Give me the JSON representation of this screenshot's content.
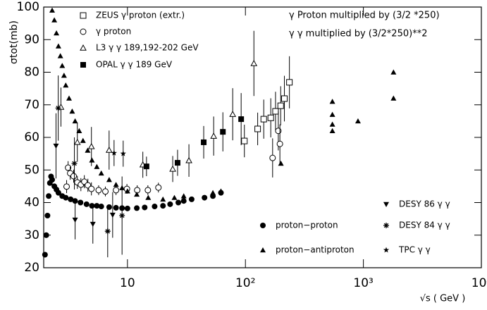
{
  "chart_data": {
    "type": "scatter",
    "y_label": "σtot(mb)",
    "x_label": "√s ( GeV )",
    "annotations": [
      "γ Proton multiplied by (3/2 *250)",
      "γ γ multiplied by (3/2*250)**2"
    ],
    "x_scale": "log",
    "xlim": [
      1.95,
      10000
    ],
    "ylim": [
      20,
      100
    ],
    "xticks": [
      {
        "value": 10,
        "label": "10"
      },
      {
        "value": 100,
        "label": "10²"
      },
      {
        "value": 1000,
        "label": "10³"
      },
      {
        "value": 10000,
        "label": "10⁴"
      }
    ],
    "yticks": [
      20,
      30,
      40,
      50,
      60,
      70,
      80,
      90,
      100
    ],
    "series": [
      {
        "name": "ZEUS γ proton (extr.)",
        "marker": "open-square",
        "legend": "upper-left",
        "x": [
          98,
          127,
          143,
          164,
          180,
          199,
          214,
          236
        ],
        "values": [
          58.9,
          62.6,
          65.6,
          66,
          68,
          69.7,
          71.9,
          76.9
        ],
        "errors": [
          5,
          5,
          6,
          6,
          6,
          6,
          7,
          8
        ]
      },
      {
        "name": "γ proton",
        "marker": "open-circle",
        "legend": "upper-left",
        "x": [
          3.05,
          3.14,
          3.27,
          3.5,
          3.76,
          4.03,
          4.31,
          4.62,
          4.95,
          5.7,
          6.5,
          8.0,
          9.9,
          12.1,
          14.9,
          18.3,
          170,
          190,
          196
        ],
        "values": [
          44.9,
          50.7,
          49.0,
          48.1,
          46.2,
          45.5,
          46.4,
          45.3,
          44.2,
          43.8,
          43.4,
          43.8,
          44.2,
          43.8,
          43.8,
          44.6,
          53.7,
          62,
          58
        ],
        "errors": [
          2,
          2,
          2,
          2,
          2,
          2,
          2,
          2,
          2,
          1.5,
          1.5,
          1.5,
          1.5,
          1.5,
          1.5,
          1.5,
          6,
          6,
          6
        ]
      },
      {
        "name": "L3 γ γ 189,192-202 GeV",
        "marker": "open-triangle",
        "legend": "upper-left",
        "x": [
          2.73,
          3.76,
          4.95,
          6.99,
          13.5,
          24.2,
          33.2,
          53.8,
          78,
          118
        ],
        "values": [
          69.3,
          58.5,
          57.2,
          56.1,
          51.6,
          50.3,
          52.9,
          60.4,
          67.1,
          82.7
        ],
        "errors": [
          6,
          6,
          6,
          6,
          4,
          4,
          5,
          6,
          8,
          10
        ]
      },
      {
        "name": "OPAL γ γ 189 GeV",
        "marker": "filled-square",
        "legend": "upper-left",
        "x": [
          14.5,
          26.6,
          44.3,
          64.4,
          92
        ],
        "values": [
          51.1,
          52.2,
          58.5,
          61.7,
          65.6
        ],
        "errors": [
          3,
          4,
          5,
          6,
          8
        ]
      },
      {
        "name": "proton−proton",
        "marker": "filled-circle",
        "legend": "lower-right",
        "x": [
          2.0,
          2.05,
          2.1,
          2.15,
          2.2,
          2.25,
          2.3,
          2.4,
          2.5,
          2.6,
          2.8,
          3.0,
          3.3,
          3.6,
          4.0,
          4.5,
          5,
          5.5,
          6,
          7,
          8,
          9,
          10,
          12,
          14,
          17,
          20,
          23,
          27,
          30,
          35,
          45,
          53,
          62
        ],
        "values": [
          24,
          30,
          36,
          42,
          46,
          48,
          47,
          45,
          44,
          43,
          42,
          41.5,
          41,
          40.5,
          40,
          39.5,
          39,
          39,
          38.8,
          38.6,
          38.4,
          38.3,
          38.2,
          38.3,
          38.5,
          38.8,
          39,
          39.5,
          40,
          40.5,
          41,
          41.5,
          42,
          43
        ]
      },
      {
        "name": "proton−antiproton",
        "marker": "filled-triangle",
        "legend": "lower-right",
        "x": [
          2.3,
          2.4,
          2.5,
          2.6,
          2.7,
          2.8,
          2.9,
          3.0,
          3.2,
          3.4,
          3.6,
          3.9,
          4.2,
          4.6,
          5,
          5.5,
          6,
          7,
          8,
          9,
          10,
          12,
          15,
          20,
          25,
          30,
          53,
          62,
          200,
          546,
          546,
          546,
          546,
          900,
          1800,
          1800
        ],
        "values": [
          99,
          96,
          92,
          88,
          85,
          82,
          79,
          76,
          72,
          68,
          65,
          62,
          59,
          56,
          53,
          51,
          49,
          47,
          45.5,
          44.5,
          43.5,
          42.5,
          41.5,
          41,
          41.5,
          42,
          43,
          43.5,
          52,
          62,
          64,
          67,
          71,
          65,
          72,
          80
        ]
      },
      {
        "name": "DESY 86 γ γ",
        "marker": "filled-down-triangle",
        "legend": "lower-right",
        "x": [
          2.48,
          3.6,
          5.09,
          7.49
        ],
        "values": [
          57.4,
          34.7,
          33.4,
          36.2
        ],
        "errors": [
          10,
          6,
          6,
          7
        ]
      },
      {
        "name": "DESY 84 γ γ",
        "marker": "asterisk",
        "legend": "lower-right",
        "x": [
          2.59,
          3.55,
          6.8,
          9.0
        ],
        "values": [
          69,
          52,
          31.2,
          36
        ],
        "errors": [
          10,
          8,
          8,
          12
        ]
      },
      {
        "name": "TPC γ γ",
        "marker": "star",
        "legend": "lower-right",
        "x": [
          7.7,
          9.2
        ],
        "values": [
          55.2,
          55
        ],
        "errors": [
          4,
          4
        ]
      }
    ]
  }
}
